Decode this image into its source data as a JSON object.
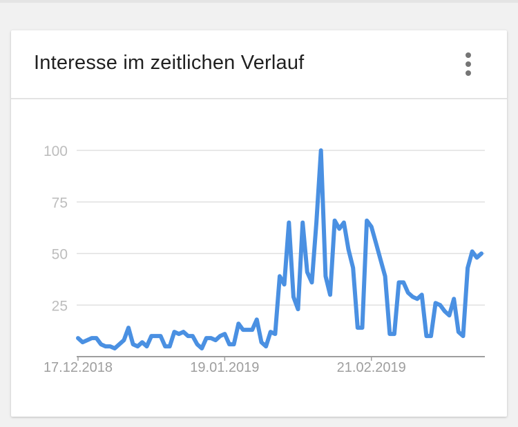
{
  "card": {
    "title": "Interesse im zeitlichen Verlauf",
    "menu_icon": "more-vert-icon"
  },
  "colors": {
    "line": "#4a90e2",
    "grid": "#e0e0e0",
    "axis": "#9e9e9e",
    "label": "#bdbdbd",
    "date_label": "#9e9e9e"
  },
  "chart_data": {
    "type": "line",
    "title": "Interesse im zeitlichen Verlauf",
    "xlabel": "",
    "ylabel": "",
    "ylim": [
      0,
      100
    ],
    "yticks": [
      "25",
      "50",
      "75",
      "100"
    ],
    "xticks": [
      {
        "index": 0,
        "label": "17.12.2018"
      },
      {
        "index": 32,
        "label": "19.01.2019"
      },
      {
        "index": 64,
        "label": "21.02.2019"
      }
    ],
    "grid": true,
    "series": [
      {
        "name": "",
        "values": [
          9,
          7,
          8,
          9,
          9,
          6,
          5,
          5,
          4,
          6,
          8,
          14,
          6,
          5,
          7,
          5,
          10,
          10,
          10,
          5,
          5,
          12,
          11,
          12,
          10,
          10,
          6,
          4,
          9,
          9,
          8,
          10,
          11,
          6,
          6,
          16,
          13,
          13,
          13,
          18,
          7,
          5,
          12,
          11,
          39,
          35,
          65,
          29,
          23,
          65,
          41,
          36,
          65,
          100,
          39,
          30,
          66,
          62,
          65,
          52,
          43,
          14,
          14,
          66,
          63,
          55,
          47,
          39,
          11,
          11,
          36,
          36,
          31,
          29,
          28,
          30,
          10,
          10,
          26,
          25,
          22,
          20,
          28,
          12,
          10,
          43,
          51,
          48,
          50
        ]
      }
    ]
  }
}
